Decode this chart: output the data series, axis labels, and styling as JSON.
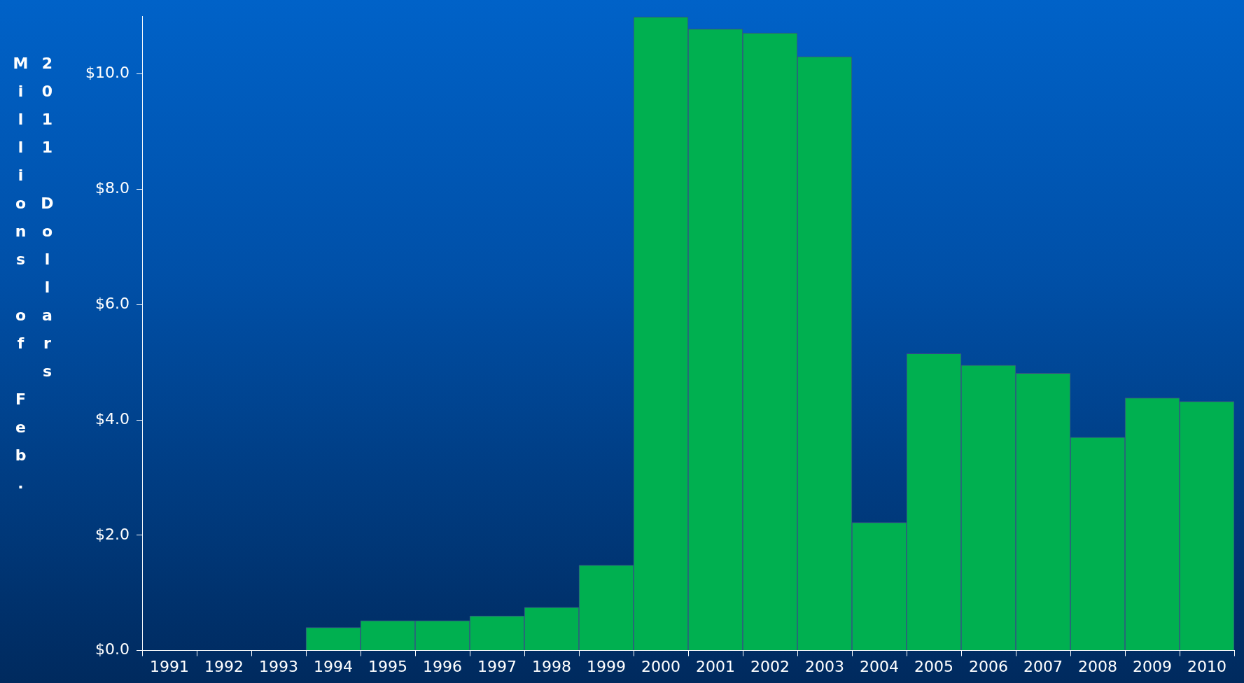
{
  "chart_data": {
    "type": "bar",
    "ylabel": "Millions of Feb. 2011 Dollars",
    "categories": [
      "1991",
      "1992",
      "1993",
      "1994",
      "1995",
      "1996",
      "1997",
      "1998",
      "1999",
      "2000",
      "2001",
      "2002",
      "2003",
      "2004",
      "2005",
      "2006",
      "2007",
      "2008",
      "2009",
      "2010"
    ],
    "values": [
      null,
      null,
      null,
      0.4,
      0.52,
      0.52,
      0.6,
      0.75,
      1.48,
      10.99,
      10.78,
      10.71,
      10.3,
      2.22,
      5.15,
      4.95,
      4.81,
      3.7,
      4.38,
      4.32
    ],
    "color": "#00b050",
    "ylim": [
      0,
      11
    ],
    "yticks": [
      {
        "value": 0,
        "label": "$0.0"
      },
      {
        "value": 2,
        "label": "$2.0"
      },
      {
        "value": 4,
        "label": "$4.0"
      },
      {
        "value": 6,
        "label": "$6.0"
      },
      {
        "value": 8,
        "label": "$8.0"
      },
      {
        "value": 10,
        "label": "$10.0"
      }
    ],
    "grid": false,
    "legend": false
  }
}
